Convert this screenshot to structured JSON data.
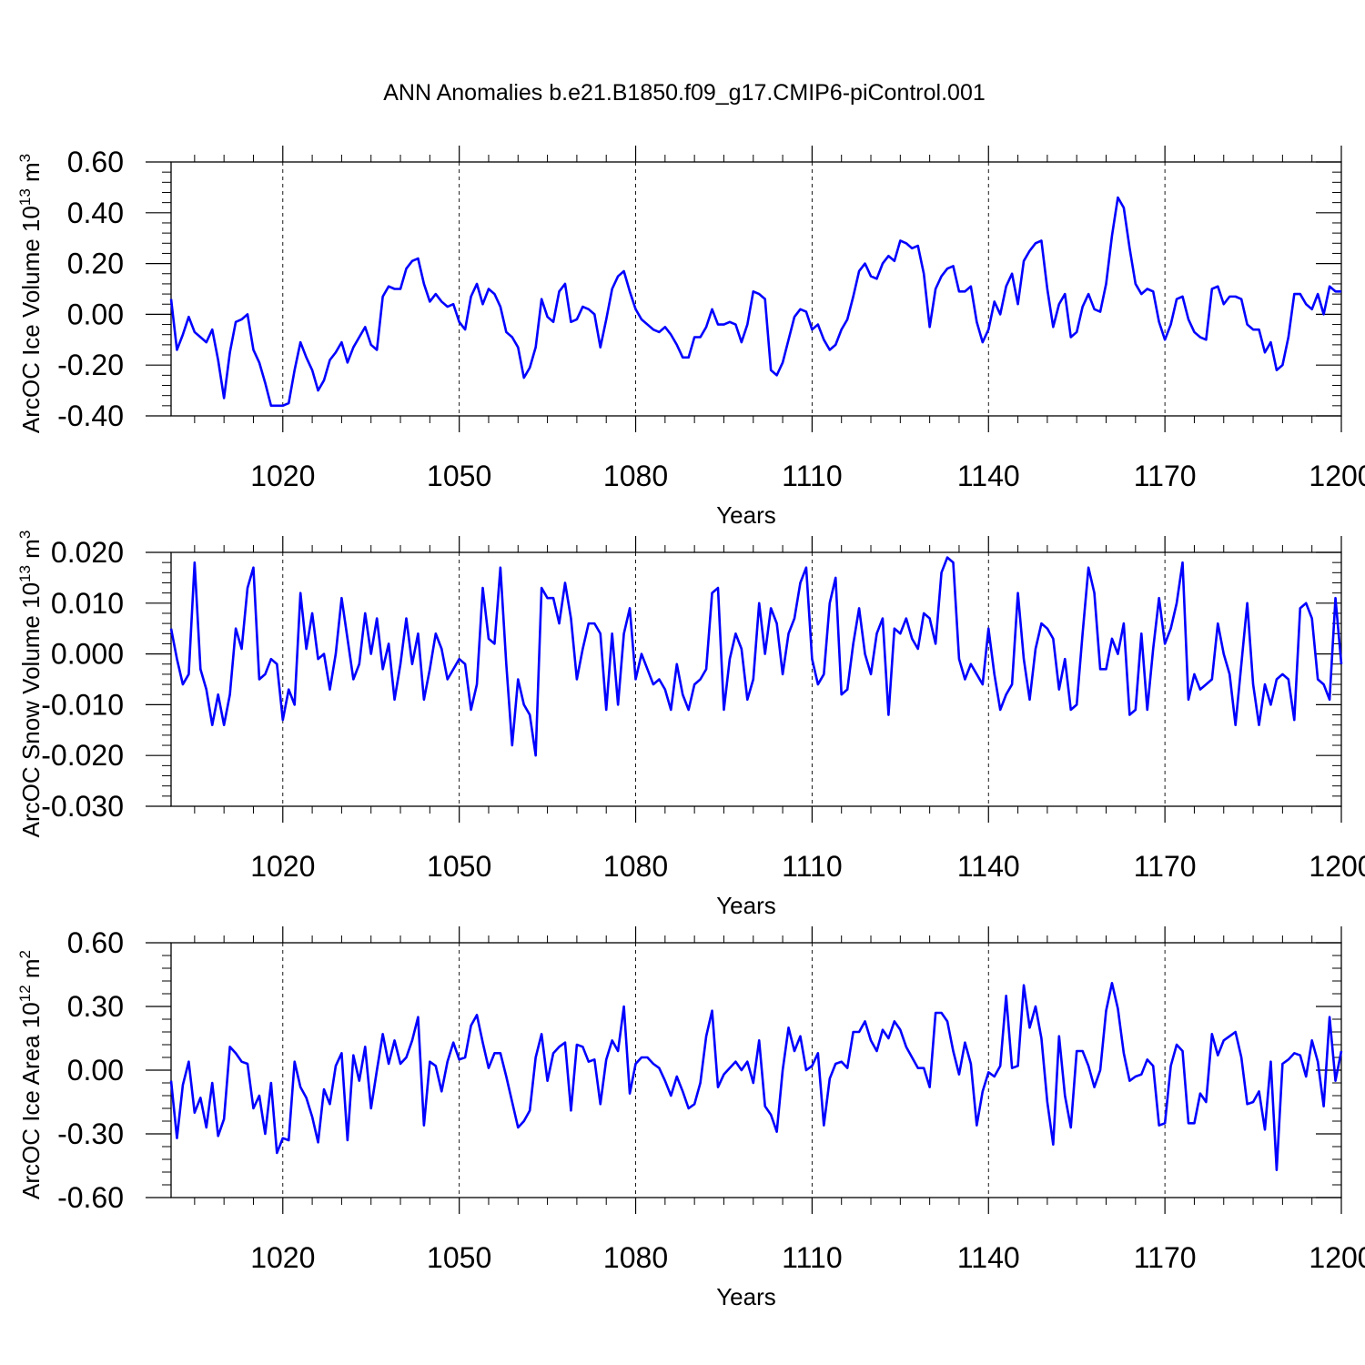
{
  "figure": {
    "title": "ANN Anomalies b.e21.B1850.f09_g17.CMIP6-piControl.001",
    "line_color": "#0000ff",
    "axis_color": "#000000"
  },
  "chart_data": [
    {
      "type": "line",
      "title": "ANN Anomalies b.e21.B1850.f09_g17.CMIP6-piControl.001",
      "xlabel": "Years",
      "ylabel": "ArcOC Ice Volume 10",
      "ylabel_exp": "13",
      "ylabel_unit": " m",
      "ylabel_unit_exp": "3",
      "xlim": [
        1001,
        1200
      ],
      "ylim": [
        -0.4,
        0.6
      ],
      "xticks": [
        1020,
        1050,
        1080,
        1110,
        1140,
        1170,
        1200
      ],
      "xtick_labels": [
        "1020",
        "1050",
        "1080",
        "1110",
        "1140",
        "1170",
        "1200"
      ],
      "yticks": [
        -0.4,
        -0.2,
        0.0,
        0.2,
        0.4,
        0.6
      ],
      "ytick_labels": [
        "-0.40",
        "-0.20",
        "0.00",
        "0.20",
        "0.40",
        "0.60"
      ],
      "grid": "vertical dashed at major x ticks",
      "series": [
        {
          "name": "ArcOC Ice Volume",
          "x_start": 1001,
          "x_step": 1,
          "values": [
            0.06,
            -0.14,
            -0.08,
            -0.01,
            -0.07,
            -0.09,
            -0.11,
            -0.06,
            -0.18,
            -0.33,
            -0.15,
            -0.03,
            -0.02,
            0.0,
            -0.14,
            -0.19,
            -0.27,
            -0.36,
            -0.36,
            -0.36,
            -0.35,
            -0.22,
            -0.11,
            -0.17,
            -0.22,
            -0.3,
            -0.26,
            -0.18,
            -0.15,
            -0.11,
            -0.19,
            -0.13,
            -0.09,
            -0.05,
            -0.12,
            -0.14,
            0.07,
            0.11,
            0.1,
            0.1,
            0.18,
            0.21,
            0.22,
            0.12,
            0.05,
            0.08,
            0.05,
            0.03,
            0.04,
            -0.03,
            -0.06,
            0.07,
            0.12,
            0.04,
            0.1,
            0.08,
            0.03,
            -0.07,
            -0.09,
            -0.13,
            -0.25,
            -0.21,
            -0.13,
            0.06,
            -0.01,
            -0.03,
            0.09,
            0.12,
            -0.03,
            -0.02,
            0.03,
            0.02,
            0.0,
            -0.13,
            -0.02,
            0.1,
            0.15,
            0.17,
            0.09,
            0.02,
            -0.02,
            -0.04,
            -0.06,
            -0.07,
            -0.05,
            -0.08,
            -0.12,
            -0.17,
            -0.17,
            -0.09,
            -0.09,
            -0.05,
            0.02,
            -0.04,
            -0.04,
            -0.03,
            -0.04,
            -0.11,
            -0.04,
            0.09,
            0.08,
            0.06,
            -0.22,
            -0.24,
            -0.19,
            -0.1,
            -0.01,
            0.02,
            0.01,
            -0.06,
            -0.04,
            -0.1,
            -0.14,
            -0.12,
            -0.06,
            -0.02,
            0.07,
            0.17,
            0.2,
            0.15,
            0.14,
            0.2,
            0.23,
            0.21,
            0.29,
            0.28,
            0.26,
            0.27,
            0.16,
            -0.05,
            0.1,
            0.15,
            0.18,
            0.19,
            0.09,
            0.09,
            0.11,
            -0.03,
            -0.11,
            -0.06,
            0.05,
            0.0,
            0.11,
            0.16,
            0.04,
            0.21,
            0.25,
            0.28,
            0.29,
            0.1,
            -0.05,
            0.04,
            0.08,
            -0.09,
            -0.07,
            0.03,
            0.08,
            0.02,
            0.01,
            0.12,
            0.31,
            0.46,
            0.42,
            0.26,
            0.12,
            0.08,
            0.1,
            0.09,
            -0.03,
            -0.1,
            -0.04,
            0.06,
            0.07,
            -0.02,
            -0.07,
            -0.09,
            -0.1,
            0.1,
            0.11,
            0.04,
            0.07,
            0.07,
            0.06,
            -0.04,
            -0.06,
            -0.06,
            -0.15,
            -0.11,
            -0.22,
            -0.2,
            -0.09,
            0.08,
            0.08,
            0.04,
            0.02,
            0.08,
            0.0,
            0.11,
            0.09,
            0.09
          ]
        }
      ]
    },
    {
      "type": "line",
      "xlabel": "Years",
      "ylabel": "ArcOC Snow Volume 10",
      "ylabel_exp": "13",
      "ylabel_unit": " m",
      "ylabel_unit_exp": "3",
      "xlim": [
        1001,
        1200
      ],
      "ylim": [
        -0.03,
        0.02
      ],
      "xticks": [
        1020,
        1050,
        1080,
        1110,
        1140,
        1170,
        1200
      ],
      "xtick_labels": [
        "1020",
        "1050",
        "1080",
        "1110",
        "1140",
        "1170",
        "1200"
      ],
      "yticks": [
        -0.03,
        -0.02,
        -0.01,
        0.0,
        0.01,
        0.02
      ],
      "ytick_labels": [
        "-0.030",
        "-0.020",
        "-0.010",
        "0.000",
        "0.010",
        "0.020"
      ],
      "grid": "vertical dashed at major x ticks",
      "series": [
        {
          "name": "ArcOC Snow Volume",
          "x_start": 1001,
          "x_step": 1,
          "values": [
            0.005,
            -0.001,
            -0.006,
            -0.004,
            0.018,
            -0.003,
            -0.007,
            -0.014,
            -0.008,
            -0.014,
            -0.008,
            0.005,
            0.001,
            0.013,
            0.017,
            -0.005,
            -0.004,
            -0.001,
            -0.002,
            -0.013,
            -0.007,
            -0.01,
            0.012,
            0.001,
            0.008,
            -0.001,
            0.0,
            -0.007,
            0.0,
            0.011,
            0.003,
            -0.005,
            -0.002,
            0.008,
            0.0,
            0.007,
            -0.003,
            0.002,
            -0.009,
            -0.002,
            0.007,
            -0.002,
            0.004,
            -0.009,
            -0.003,
            0.004,
            0.001,
            -0.005,
            -0.003,
            -0.001,
            -0.002,
            -0.011,
            -0.006,
            0.013,
            0.003,
            0.002,
            0.017,
            -0.002,
            -0.018,
            -0.005,
            -0.01,
            -0.012,
            -0.02,
            0.013,
            0.011,
            0.011,
            0.006,
            0.014,
            0.007,
            -0.005,
            0.001,
            0.006,
            0.006,
            0.004,
            -0.011,
            0.004,
            -0.01,
            0.004,
            0.009,
            -0.005,
            0.0,
            -0.003,
            -0.006,
            -0.005,
            -0.007,
            -0.011,
            -0.002,
            -0.008,
            -0.011,
            -0.006,
            -0.005,
            -0.003,
            0.012,
            0.013,
            -0.011,
            -0.001,
            0.004,
            0.001,
            -0.009,
            -0.005,
            0.01,
            0.0,
            0.009,
            0.006,
            -0.004,
            0.004,
            0.007,
            0.014,
            0.017,
            -0.001,
            -0.006,
            -0.004,
            0.01,
            0.015,
            -0.008,
            -0.007,
            0.002,
            0.009,
            0.0,
            -0.004,
            0.004,
            0.007,
            -0.012,
            0.005,
            0.004,
            0.007,
            0.003,
            0.001,
            0.008,
            0.007,
            0.002,
            0.016,
            0.019,
            0.018,
            -0.001,
            -0.005,
            -0.002,
            -0.004,
            -0.006,
            0.005,
            -0.004,
            -0.011,
            -0.008,
            -0.006,
            0.012,
            -0.001,
            -0.009,
            0.001,
            0.006,
            0.005,
            0.003,
            -0.007,
            -0.001,
            -0.011,
            -0.01,
            0.004,
            0.017,
            0.012,
            -0.003,
            -0.003,
            0.003,
            0.0,
            0.006,
            -0.012,
            -0.011,
            0.004,
            -0.011,
            0.001,
            0.011,
            0.002,
            0.005,
            0.01,
            0.018,
            -0.009,
            -0.004,
            -0.007,
            -0.006,
            -0.005,
            0.006,
            0.0,
            -0.004,
            -0.014,
            -0.002,
            0.01,
            -0.006,
            -0.014,
            -0.006,
            -0.01,
            -0.005,
            -0.004,
            -0.005,
            -0.013,
            0.009,
            0.01,
            0.007,
            -0.005,
            -0.006,
            -0.009,
            0.011,
            -0.002
          ]
        }
      ]
    },
    {
      "type": "line",
      "xlabel": "Years",
      "ylabel": "ArcOC Ice Area 10",
      "ylabel_exp": "12",
      "ylabel_unit": " m",
      "ylabel_unit_exp": "2",
      "xlim": [
        1001,
        1200
      ],
      "ylim": [
        -0.6,
        0.6
      ],
      "xticks": [
        1020,
        1050,
        1080,
        1110,
        1140,
        1170,
        1200
      ],
      "xtick_labels": [
        "1020",
        "1050",
        "1080",
        "1110",
        "1140",
        "1170",
        "1200"
      ],
      "yticks": [
        -0.6,
        -0.3,
        0.0,
        0.3,
        0.6
      ],
      "ytick_labels": [
        "-0.60",
        "-0.30",
        "0.00",
        "0.30",
        "0.60"
      ],
      "grid": "vertical dashed at major x ticks",
      "series": [
        {
          "name": "ArcOC Ice Area",
          "x_start": 1001,
          "x_step": 1,
          "values": [
            -0.05,
            -0.32,
            -0.07,
            0.04,
            -0.2,
            -0.13,
            -0.27,
            -0.06,
            -0.31,
            -0.23,
            0.11,
            0.08,
            0.04,
            0.03,
            -0.18,
            -0.12,
            -0.3,
            -0.06,
            -0.39,
            -0.32,
            -0.33,
            0.04,
            -0.08,
            -0.13,
            -0.22,
            -0.34,
            -0.09,
            -0.16,
            0.02,
            0.08,
            -0.33,
            0.07,
            -0.05,
            0.11,
            -0.18,
            0.0,
            0.17,
            0.03,
            0.14,
            0.03,
            0.06,
            0.14,
            0.25,
            -0.26,
            0.04,
            0.02,
            -0.1,
            0.04,
            0.13,
            0.05,
            0.06,
            0.21,
            0.26,
            0.13,
            0.01,
            0.08,
            0.08,
            -0.03,
            -0.15,
            -0.27,
            -0.24,
            -0.19,
            0.06,
            0.17,
            -0.05,
            0.08,
            0.11,
            0.13,
            -0.19,
            0.12,
            0.11,
            0.04,
            0.05,
            -0.16,
            0.05,
            0.14,
            0.09,
            0.3,
            -0.11,
            0.03,
            0.06,
            0.06,
            0.03,
            0.01,
            -0.05,
            -0.12,
            -0.03,
            -0.1,
            -0.18,
            -0.16,
            -0.06,
            0.16,
            0.28,
            -0.08,
            -0.02,
            0.01,
            0.04,
            0.0,
            0.04,
            -0.06,
            0.14,
            -0.17,
            -0.21,
            -0.29,
            0.0,
            0.2,
            0.09,
            0.16,
            0.0,
            0.02,
            0.08,
            -0.26,
            -0.04,
            0.03,
            0.04,
            0.01,
            0.18,
            0.18,
            0.23,
            0.14,
            0.09,
            0.19,
            0.15,
            0.23,
            0.19,
            0.11,
            0.06,
            0.01,
            0.01,
            -0.08,
            0.27,
            0.27,
            0.23,
            0.09,
            -0.02,
            0.13,
            0.03,
            -0.26,
            -0.1,
            -0.01,
            -0.03,
            0.02,
            0.35,
            0.01,
            0.02,
            0.4,
            0.2,
            0.3,
            0.15,
            -0.15,
            -0.35,
            0.16,
            -0.12,
            -0.27,
            0.09,
            0.09,
            0.02,
            -0.08,
            0.0,
            0.28,
            0.41,
            0.29,
            0.08,
            -0.05,
            -0.03,
            -0.02,
            0.05,
            0.02,
            -0.26,
            -0.25,
            0.02,
            0.12,
            0.09,
            -0.25,
            -0.25,
            -0.11,
            -0.15,
            0.17,
            0.07,
            0.14,
            0.16,
            0.18,
            0.06,
            -0.16,
            -0.15,
            -0.1,
            -0.28,
            0.04,
            -0.47,
            0.03,
            0.05,
            0.08,
            0.07,
            -0.03,
            0.14,
            0.04,
            -0.17,
            0.25,
            -0.05,
            0.09
          ]
        }
      ]
    }
  ]
}
